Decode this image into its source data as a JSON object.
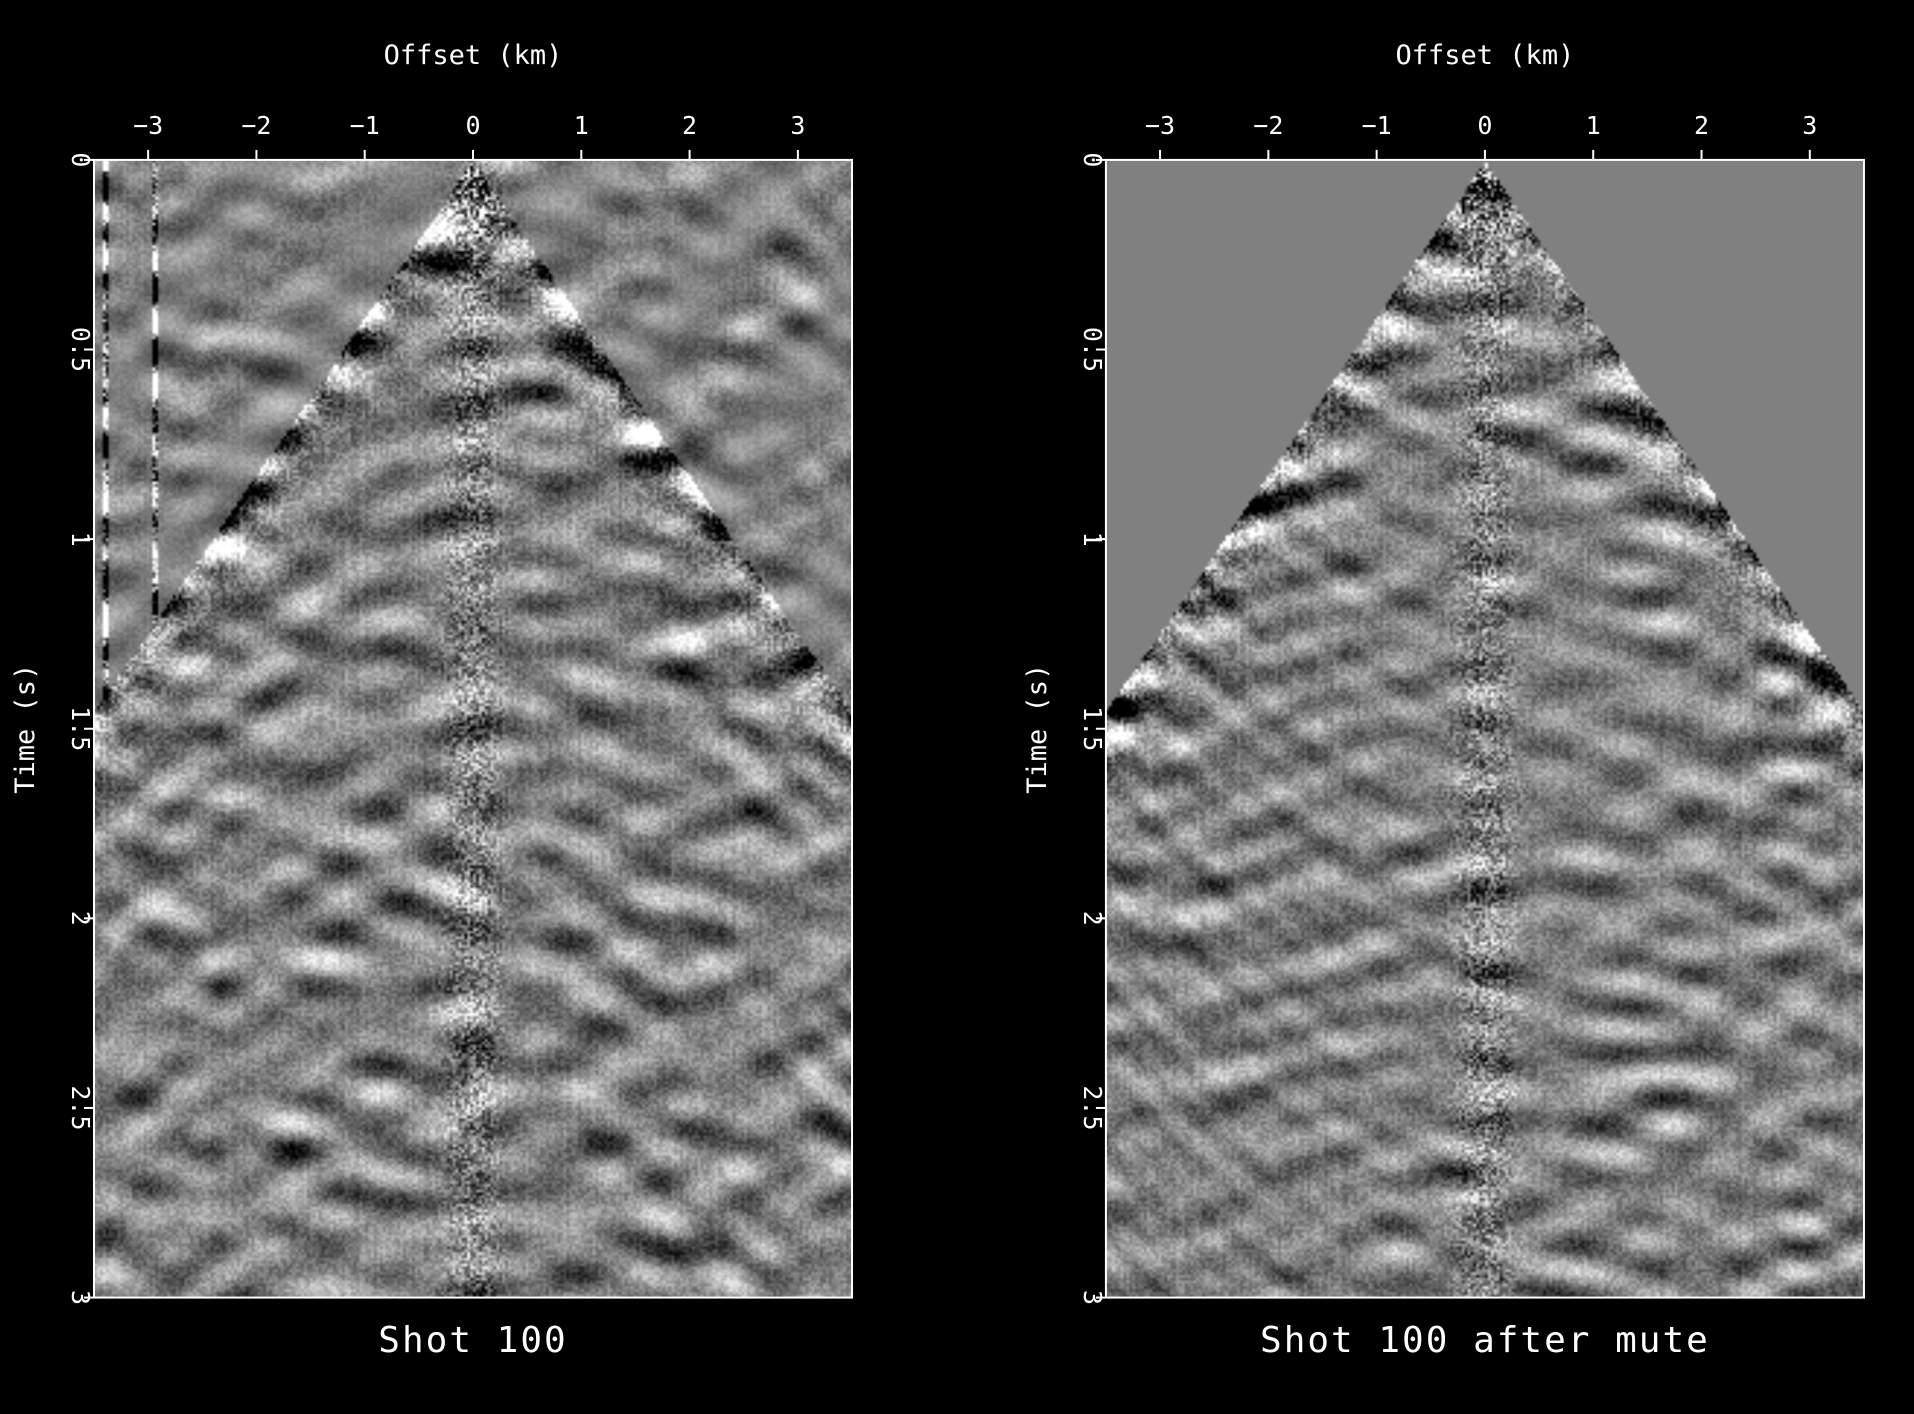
{
  "chart_data": [
    {
      "type": "heatmap",
      "subtype": "seismic-shot-gather",
      "title": "Shot 100",
      "xlabel": "Offset (km)",
      "ylabel": "Time (s)",
      "xlim": [
        -3.5,
        3.5
      ],
      "ylim": [
        0,
        3
      ],
      "y_inverted": true,
      "x_axis_position": "top",
      "x_ticks": [
        -3,
        -2,
        -1,
        0,
        1,
        2,
        3
      ],
      "y_ticks": [
        0,
        0.5,
        1,
        1.5,
        2,
        2.5,
        3
      ],
      "x_tick_labels": [
        "−3",
        "−2",
        "−1",
        "0",
        "1",
        "2",
        "3"
      ],
      "y_tick_labels": [
        "0",
        "0.5",
        "1",
        "1.5",
        "2",
        "2.5",
        "3"
      ],
      "colormap": "grayscale",
      "muted": false,
      "first_break_apex_time_s": 0.0,
      "first_break_time_at_max_offset_s": 1.45
    },
    {
      "type": "heatmap",
      "subtype": "seismic-shot-gather",
      "title": "Shot 100 after mute",
      "xlabel": "Offset (km)",
      "ylabel": "Time (s)",
      "xlim": [
        -3.5,
        3.5
      ],
      "ylim": [
        0,
        3
      ],
      "y_inverted": true,
      "x_axis_position": "top",
      "x_ticks": [
        -3,
        -2,
        -1,
        0,
        1,
        2,
        3
      ],
      "y_ticks": [
        0,
        0.5,
        1,
        1.5,
        2,
        2.5,
        3
      ],
      "x_tick_labels": [
        "−3",
        "−2",
        "−1",
        "0",
        "1",
        "2",
        "3"
      ],
      "y_tick_labels": [
        "0",
        "0.5",
        "1",
        "1.5",
        "2",
        "2.5",
        "3"
      ],
      "colormap": "grayscale",
      "muted": true,
      "mute_fill_color": "#808080",
      "first_break_apex_time_s": 0.0,
      "first_break_time_at_max_offset_s": 1.45
    }
  ]
}
